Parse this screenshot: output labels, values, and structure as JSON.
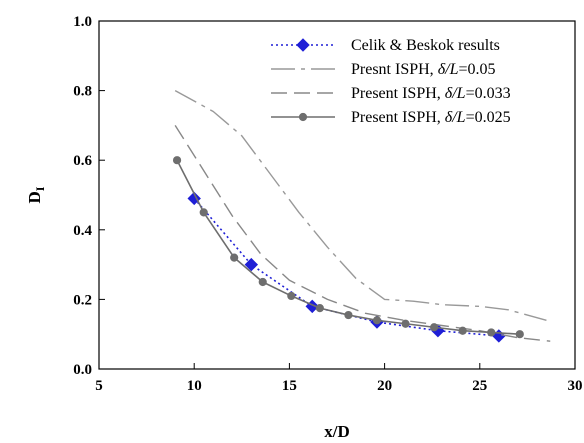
{
  "chart_data": {
    "type": "line",
    "xlabel": "x/D",
    "ylabel": "D",
    "ylabel_subscript": "I",
    "xlim": [
      5,
      30
    ],
    "ylim": [
      0.0,
      1.0
    ],
    "x_ticks": [
      "5",
      "10",
      "15",
      "20",
      "25",
      "30"
    ],
    "y_ticks": [
      "0.0",
      "0.2",
      "0.4",
      "0.6",
      "0.8",
      "1.0"
    ],
    "grid": false,
    "legend_position": "top-right",
    "series": [
      {
        "name": "Celik & Beskok results",
        "style": "dotted-diamond",
        "color": "#1f1fd6",
        "x": [
          10.0,
          13.0,
          16.2,
          19.6,
          22.8,
          26.0
        ],
        "y": [
          0.49,
          0.3,
          0.18,
          0.135,
          0.11,
          0.095
        ]
      },
      {
        "name_prefix": "Presnt ISPH, ",
        "name_delta": "δ/L",
        "name_value": "=0.05",
        "style": "dash-dot",
        "color": "#999999",
        "x": [
          9.0,
          11.0,
          12.5,
          14.0,
          15.5,
          17.0,
          18.5,
          20.0,
          21.5,
          23.0,
          25.0,
          26.5,
          28.5
        ],
        "y": [
          0.8,
          0.74,
          0.67,
          0.56,
          0.45,
          0.35,
          0.26,
          0.2,
          0.195,
          0.185,
          0.18,
          0.17,
          0.14
        ]
      },
      {
        "name_prefix": "Present ISPH, ",
        "name_delta": "δ/L",
        "name_value": "=0.033",
        "style": "dashed",
        "color": "#888888",
        "x": [
          9.0,
          10.5,
          12.0,
          13.5,
          15.0,
          17.0,
          19.0,
          21.0,
          23.0,
          25.0,
          27.0,
          28.7
        ],
        "y": [
          0.7,
          0.57,
          0.44,
          0.33,
          0.255,
          0.2,
          0.16,
          0.14,
          0.125,
          0.11,
          0.09,
          0.08
        ]
      },
      {
        "name_prefix": "Present ISPH, ",
        "name_delta": "δ/L",
        "name_value": "=0.025",
        "style": "solid-circle",
        "color": "#6e6e6e",
        "x": [
          9.1,
          10.5,
          12.1,
          13.6,
          15.1,
          16.6,
          18.1,
          19.6,
          21.1,
          22.6,
          24.1,
          25.6,
          27.1
        ],
        "y": [
          0.6,
          0.45,
          0.32,
          0.25,
          0.21,
          0.175,
          0.155,
          0.14,
          0.13,
          0.12,
          0.11,
          0.105,
          0.1
        ]
      }
    ]
  }
}
